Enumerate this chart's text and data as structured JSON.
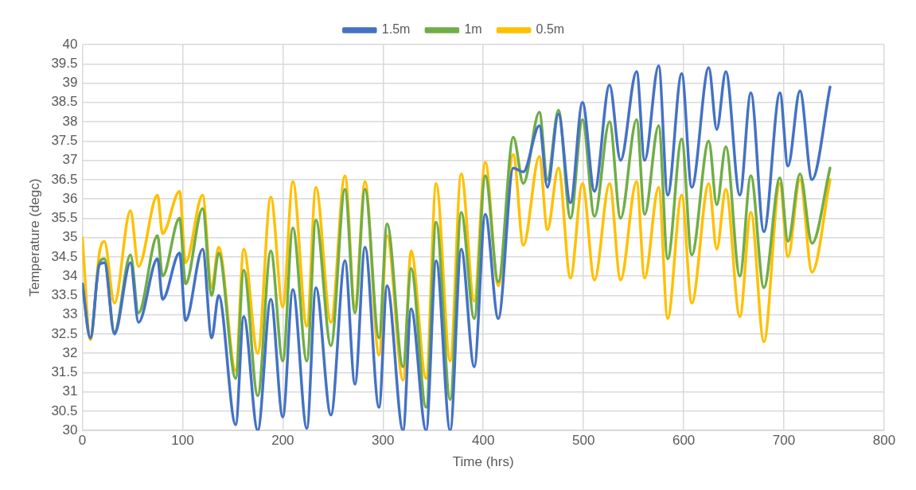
{
  "chart_data": {
    "type": "line",
    "xlabel": "Time (hrs)",
    "ylabel": "Temperature (degc)",
    "x": [
      0,
      8,
      17,
      22,
      32,
      48,
      56,
      75,
      80,
      97,
      103,
      120,
      129,
      136,
      153,
      161,
      175,
      188,
      200,
      210,
      224,
      233,
      248,
      262,
      272,
      282,
      296,
      304,
      320,
      328,
      343,
      353,
      367,
      378,
      391,
      402,
      415,
      430,
      440,
      456,
      464,
      475,
      487,
      499,
      511,
      526,
      537,
      553,
      561,
      575,
      584,
      598,
      608,
      625,
      633,
      642,
      656,
      667,
      680,
      696,
      704,
      716,
      728,
      746
    ],
    "series": [
      {
        "name": "1.5m",
        "color": "#4472c4",
        "values": [
          33.8,
          32.4,
          34.3,
          34.35,
          32.5,
          34.35,
          32.8,
          34.45,
          33.4,
          34.6,
          32.85,
          34.7,
          32.4,
          33.5,
          30.15,
          32.95,
          30.0,
          33.4,
          30.35,
          33.65,
          30.05,
          33.7,
          30.4,
          34.4,
          31.2,
          34.75,
          30.6,
          33.75,
          30.0,
          33.15,
          30.0,
          34.4,
          30.0,
          34.7,
          31.65,
          35.6,
          32.9,
          36.8,
          36.7,
          37.9,
          36.3,
          38.2,
          35.9,
          38.5,
          36.2,
          38.95,
          37.0,
          39.3,
          37.0,
          39.45,
          36.1,
          39.25,
          36.3,
          39.4,
          37.8,
          39.3,
          36.1,
          38.75,
          35.15,
          38.75,
          36.85,
          38.8,
          36.5,
          38.9
        ]
      },
      {
        "name": "1m",
        "color": "#70ad47",
        "values": [
          33.8,
          32.4,
          34.35,
          34.45,
          32.55,
          34.55,
          33.05,
          35.05,
          34.0,
          35.5,
          33.8,
          35.75,
          33.5,
          34.6,
          31.35,
          34.15,
          30.9,
          34.65,
          31.8,
          35.25,
          31.8,
          35.45,
          32.2,
          36.25,
          33.05,
          36.25,
          32.4,
          35.35,
          31.65,
          34.2,
          30.6,
          35.4,
          30.8,
          35.65,
          32.9,
          36.6,
          33.85,
          37.6,
          36.4,
          38.25,
          36.5,
          38.3,
          35.5,
          38.05,
          35.55,
          38.0,
          35.5,
          38.05,
          35.6,
          37.9,
          34.45,
          37.55,
          34.55,
          37.5,
          35.85,
          37.35,
          34.0,
          36.6,
          33.7,
          36.55,
          34.9,
          36.65,
          34.85,
          36.8
        ]
      },
      {
        "name": "0.5m",
        "color": "#ffc000",
        "values": [
          35.0,
          32.35,
          34.6,
          34.9,
          33.3,
          35.7,
          34.25,
          36.1,
          35.1,
          36.2,
          34.35,
          36.1,
          33.7,
          34.75,
          31.55,
          34.7,
          32.0,
          36.05,
          33.2,
          36.45,
          32.7,
          36.3,
          32.8,
          36.6,
          33.2,
          36.45,
          31.95,
          35.05,
          31.3,
          34.65,
          31.35,
          36.4,
          31.8,
          36.65,
          33.35,
          36.95,
          33.75,
          37.15,
          34.8,
          37.1,
          35.2,
          36.8,
          33.95,
          36.4,
          33.9,
          36.4,
          33.9,
          36.45,
          33.95,
          36.3,
          32.9,
          36.1,
          33.3,
          36.4,
          34.7,
          36.25,
          32.95,
          35.65,
          32.3,
          36.4,
          34.5,
          36.5,
          34.1,
          36.5
        ]
      }
    ],
    "xlim": [
      0,
      800
    ],
    "xticks": [
      0,
      100,
      200,
      300,
      400,
      500,
      600,
      700,
      800
    ],
    "ylim": [
      30,
      40
    ],
    "yticks": [
      30,
      30.5,
      31,
      31.5,
      32,
      32.5,
      33,
      33.5,
      34,
      34.5,
      35,
      35.5,
      36,
      36.5,
      37,
      37.5,
      38,
      38.5,
      39,
      39.5,
      40
    ],
    "grid": true,
    "legend": "top",
    "marker": "none",
    "line_style": "solid"
  }
}
